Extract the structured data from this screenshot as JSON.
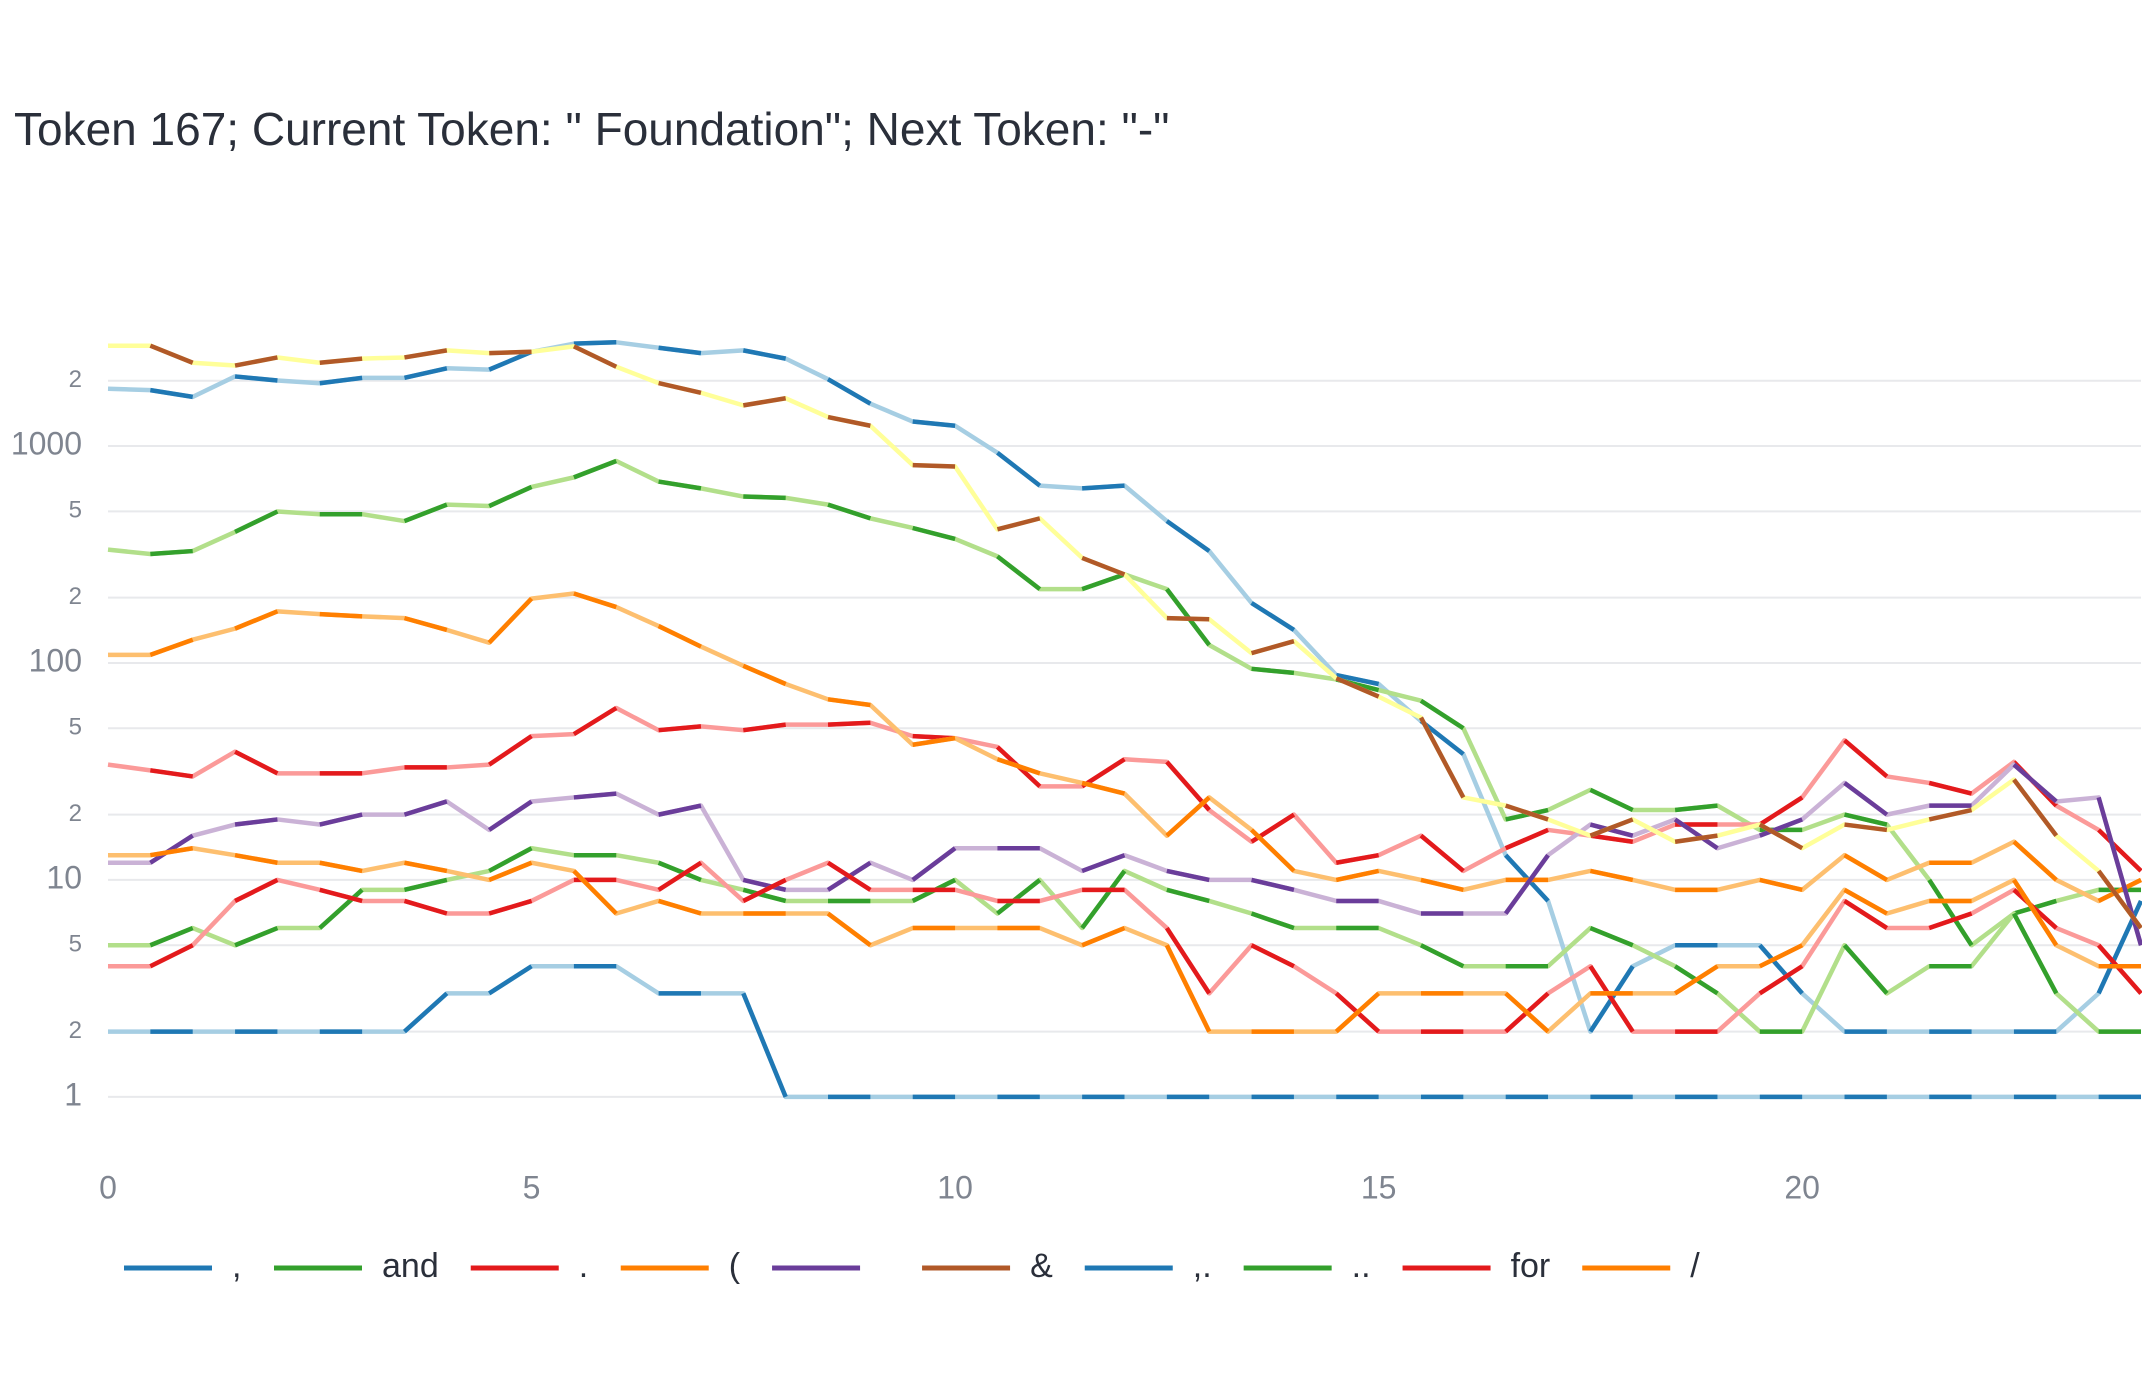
{
  "chart_data": {
    "type": "line",
    "title": "Token 167; Current Token: \" Foundation\"; Next Token: \"-\"",
    "x": [
      0,
      0.5,
      1,
      1.5,
      2,
      2.5,
      3,
      3.5,
      4,
      4.5,
      5,
      5.5,
      6,
      6.5,
      7,
      7.5,
      8,
      8.5,
      9,
      9.5,
      10,
      10.5,
      11,
      11.5,
      12,
      12.5,
      13,
      13.5,
      14,
      14.5,
      15,
      15.5,
      16,
      16.5,
      17,
      17.5,
      18,
      18.5,
      19,
      19.5,
      20,
      20.5,
      21,
      21.5,
      22,
      22.5,
      23,
      23.5,
      24
    ],
    "xlim": [
      0,
      24
    ],
    "xticks": [
      0,
      5,
      10,
      15,
      20
    ],
    "ylim": [
      0.6,
      3500
    ],
    "yscale": "log",
    "yticks": [
      1,
      2,
      5,
      10,
      {
        "value": 20,
        "label": "2"
      },
      {
        "value": 50,
        "label": "5"
      },
      100,
      {
        "value": 200,
        "label": "2"
      },
      {
        "value": 500,
        "label": "5"
      },
      1000,
      {
        "value": 2000,
        "label": "2"
      }
    ],
    "grid": true,
    "legend": "bottom",
    "series": [
      {
        "name": ",",
        "color": "#1f78b4",
        "color_light": "#a6cee3",
        "values": [
          1837,
          1810,
          1685,
          2093,
          2004,
          1947,
          2062,
          2062,
          2282,
          2250,
          2718,
          2964,
          3007,
          2838,
          2680,
          2760,
          2529,
          2033,
          1567,
          1297,
          1240,
          931,
          657,
          638,
          657,
          451,
          328,
          189,
          142,
          88,
          80,
          54,
          38,
          13,
          8,
          2,
          4,
          5,
          5,
          5,
          3,
          2,
          2,
          2,
          2,
          2,
          2,
          3,
          8
        ]
      },
      {
        "name": "and",
        "color": "#33a02c",
        "color_light": "#b2df8a",
        "values": [
          333,
          318,
          328,
          402,
          499,
          485,
          485,
          451,
          537,
          529,
          648,
          717,
          853,
          686,
          638,
          585,
          577,
          537,
          464,
          419,
          373,
          310,
          219,
          219,
          256,
          219,
          121,
          94,
          90,
          84,
          75,
          67,
          50,
          19,
          21,
          26,
          21,
          21,
          22,
          17,
          17,
          20,
          18,
          10,
          5,
          7,
          8,
          9,
          9
        ]
      },
      {
        "name": ".",
        "color": "#e31a1c",
        "color_light": "#fb9a99",
        "values": [
          34,
          32,
          30,
          39,
          31,
          31,
          31,
          33,
          33,
          34,
          46,
          47,
          62,
          49,
          51,
          49,
          52,
          52,
          53,
          46,
          45,
          41,
          27,
          27,
          36,
          35,
          21,
          15,
          20,
          12,
          13,
          16,
          11,
          14,
          17,
          16,
          15,
          18,
          18,
          18,
          24,
          44,
          30,
          28,
          25,
          35,
          22,
          17,
          11
        ]
      },
      {
        "name": "(",
        "color": "#ff7f00",
        "color_light": "#fdbf6f",
        "values": [
          109,
          109,
          128,
          144,
          173,
          168,
          164,
          161,
          142,
          124,
          198,
          209,
          181,
          148,
          119,
          97,
          80,
          68,
          64,
          42,
          45,
          36,
          31,
          28,
          25,
          16,
          24,
          17,
          11,
          10,
          11,
          10,
          9,
          10,
          10,
          11,
          10,
          9,
          9,
          10,
          9,
          13,
          10,
          12,
          12,
          15,
          10,
          8,
          10
        ]
      },
      {
        "name": " ",
        "color": "#6a3d9a",
        "color_light": "#cab2d6",
        "values": [
          12,
          12,
          16,
          18,
          19,
          18,
          20,
          20,
          23,
          17,
          23,
          24,
          25,
          20,
          22,
          10,
          9,
          9,
          12,
          10,
          14,
          14,
          14,
          11,
          13,
          11,
          10,
          10,
          9,
          8,
          8,
          7,
          7,
          7,
          13,
          18,
          16,
          19,
          14,
          16,
          19,
          28,
          20,
          22,
          22,
          34,
          23,
          24,
          5
        ]
      },
      {
        "name": "&",
        "color": "#b15928",
        "color_light": "#ffff99",
        "values": [
          2900,
          2900,
          2420,
          2350,
          2560,
          2420,
          2530,
          2560,
          2760,
          2680,
          2720,
          2880,
          2320,
          1950,
          1760,
          1540,
          1660,
          1360,
          1240,
          817,
          805,
          413,
          464,
          305,
          256,
          161,
          159,
          111,
          126,
          85,
          70,
          56,
          24,
          22,
          19,
          16,
          19,
          15,
          16,
          18,
          14,
          18,
          17,
          19,
          21,
          29,
          16,
          11,
          6
        ]
      },
      {
        "name": ",.",
        "color": "#1f78b4",
        "color_light": "#a6cee3",
        "values": [
          2,
          2,
          2,
          2,
          2,
          2,
          2,
          2,
          3,
          3,
          4,
          4,
          4,
          3,
          3,
          3,
          1,
          1,
          1,
          1,
          1,
          1,
          1,
          1,
          1,
          1,
          1,
          1,
          1,
          1,
          1,
          1,
          1,
          1,
          1,
          1,
          1,
          1,
          1,
          1,
          1,
          1,
          1,
          1,
          1,
          1,
          1,
          1,
          1
        ]
      },
      {
        "name": "..",
        "color": "#33a02c",
        "color_light": "#b2df8a",
        "values": [
          5,
          5,
          6,
          5,
          6,
          6,
          9,
          9,
          10,
          11,
          14,
          13,
          13,
          12,
          10,
          9,
          8,
          8,
          8,
          8,
          10,
          7,
          10,
          6,
          11,
          9,
          8,
          7,
          6,
          6,
          6,
          5,
          4,
          4,
          4,
          6,
          5,
          4,
          3,
          2,
          2,
          5,
          3,
          4,
          4,
          7,
          3,
          2,
          2
        ]
      },
      {
        "name": "for",
        "color": "#e31a1c",
        "color_light": "#fb9a99",
        "values": [
          4,
          4,
          5,
          8,
          10,
          9,
          8,
          8,
          7,
          7,
          8,
          10,
          10,
          9,
          12,
          8,
          10,
          12,
          9,
          9,
          9,
          8,
          8,
          9,
          9,
          6,
          3,
          5,
          4,
          3,
          2,
          2,
          2,
          2,
          3,
          4,
          2,
          2,
          2,
          3,
          4,
          8,
          6,
          6,
          7,
          9,
          6,
          5,
          3
        ]
      },
      {
        "name": "/",
        "color": "#ff7f00",
        "color_light": "#fdbf6f",
        "values": [
          13,
          13,
          14,
          13,
          12,
          12,
          11,
          12,
          11,
          10,
          12,
          11,
          7,
          8,
          7,
          7,
          7,
          7,
          5,
          6,
          6,
          6,
          6,
          5,
          6,
          5,
          2,
          2,
          2,
          2,
          3,
          3,
          3,
          3,
          2,
          3,
          3,
          3,
          4,
          4,
          5,
          9,
          7,
          8,
          8,
          10,
          5,
          4,
          4
        ]
      }
    ]
  }
}
